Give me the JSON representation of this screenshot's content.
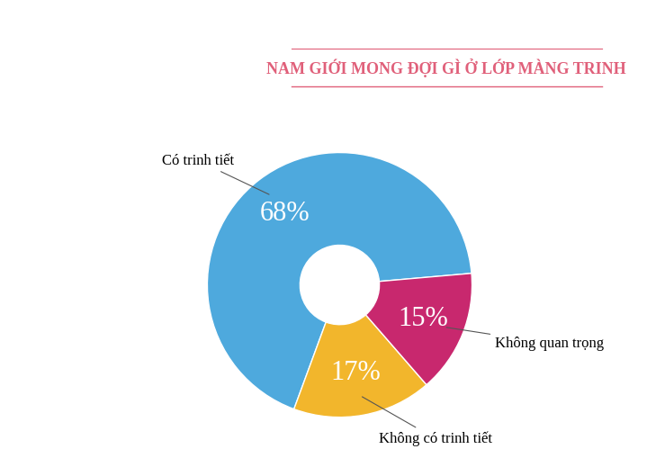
{
  "chart_data": {
    "type": "pie",
    "title": "NAM GIỚI MONG ĐỢI GÌ Ở LỚP MÀNG TRINH",
    "categories": [
      "Có trinh tiết",
      "Không có trinh tiết",
      "Không quan trọng"
    ],
    "values": [
      68,
      17,
      15
    ],
    "value_labels": [
      "68%",
      "17%",
      "15%"
    ],
    "colors": [
      "#4ea9dd",
      "#f2b62c",
      "#c8286e"
    ],
    "data_labels": true
  }
}
